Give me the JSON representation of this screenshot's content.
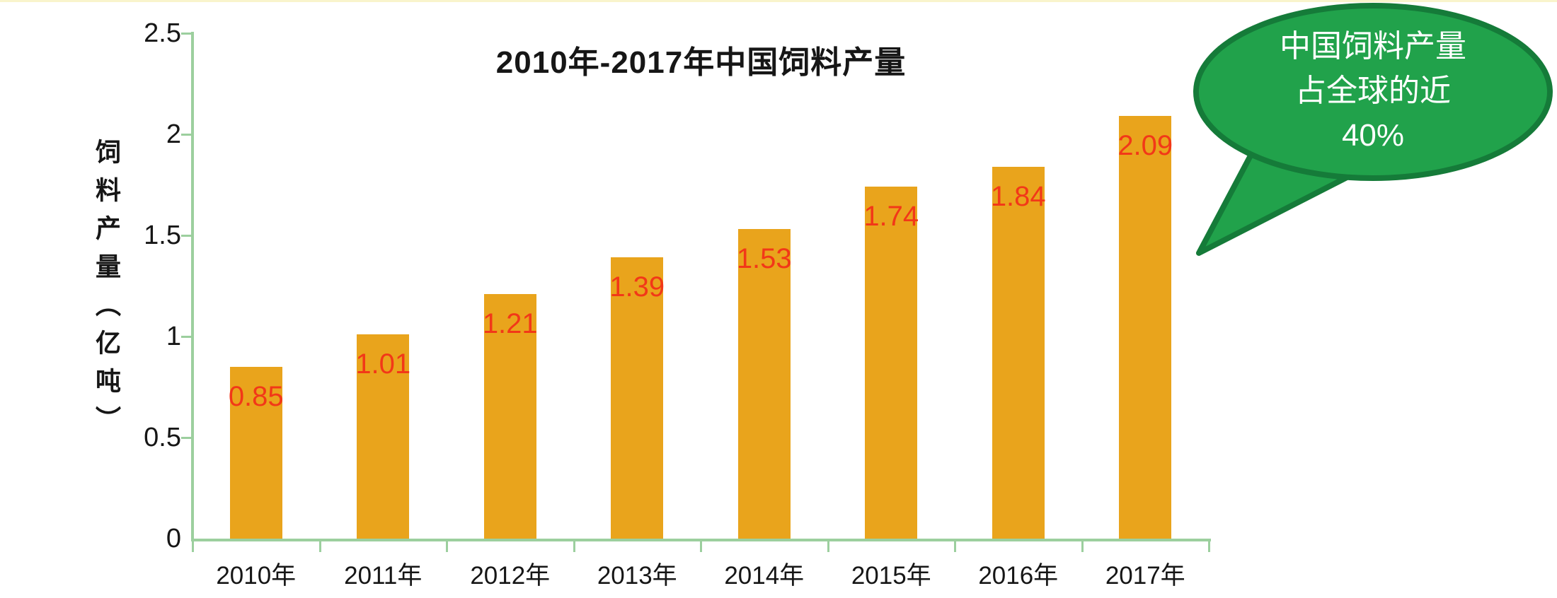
{
  "page": {
    "background": "#ffffff",
    "top_strip_color": "#f6eeb0"
  },
  "chart_data": {
    "type": "bar",
    "title": "2010年-2017年中国饲料产量",
    "xlabel": "",
    "ylabel": "饲料产量（亿吨）",
    "categories": [
      "2010年",
      "2011年",
      "2012年",
      "2013年",
      "2014年",
      "2015年",
      "2016年",
      "2017年"
    ],
    "values": [
      0.85,
      1.01,
      1.21,
      1.39,
      1.53,
      1.74,
      1.84,
      2.09
    ],
    "value_labels": [
      "0.85",
      "1.01",
      "1.21",
      "1.39",
      "1.53",
      "1.74",
      "1.84",
      "2.09"
    ],
    "ylim": [
      0,
      2.5
    ],
    "y_ticks": [
      0,
      0.5,
      1,
      1.5,
      2,
      2.5
    ],
    "y_tick_labels": [
      "0",
      "0.5",
      "1",
      "1.5",
      "2",
      "2.5"
    ],
    "grid": false,
    "legend": null,
    "colors": {
      "bar": "#e9a41c",
      "value_label": "#f23818",
      "axis": "#9ccf9e",
      "text": "#161616"
    },
    "annotation": {
      "shape": "oval-callout",
      "fill": "#21a24b",
      "border": "#157b39",
      "text_color": "#ffffff",
      "lines": [
        "中国饲料产量",
        "占全球的近",
        "40%"
      ],
      "text": "中国饲料产量占全球的近40%"
    }
  }
}
